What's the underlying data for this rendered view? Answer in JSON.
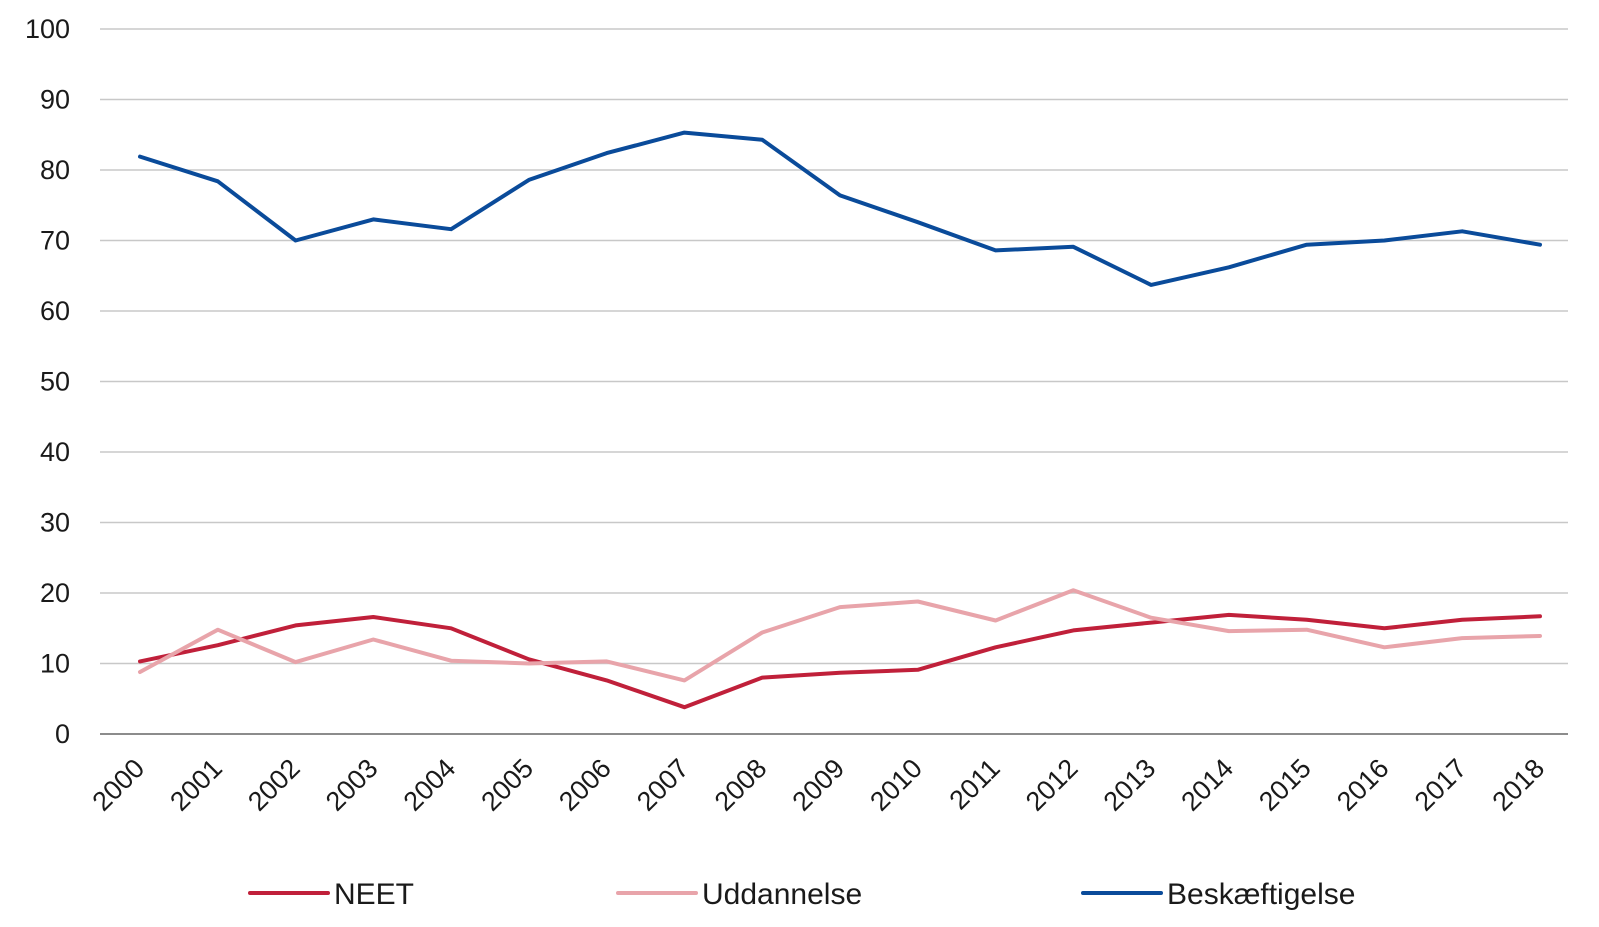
{
  "chart_data": {
    "type": "line",
    "title": "",
    "xlabel": "",
    "ylabel": "",
    "x": [
      "2000",
      "2001",
      "2002",
      "2003",
      "2004",
      "2005",
      "2006",
      "2007",
      "2008",
      "2009",
      "2010",
      "2011",
      "2012",
      "2013",
      "2014",
      "2015",
      "2016",
      "2017",
      "2018"
    ],
    "ylim": [
      0,
      100
    ],
    "yticks": [
      0,
      10,
      20,
      30,
      40,
      50,
      60,
      70,
      80,
      90,
      100
    ],
    "grid": true,
    "legend_position": "bottom",
    "series": [
      {
        "name": "NEET",
        "color": "#c0203a",
        "values": [
          10.3,
          12.6,
          15.4,
          16.6,
          15.0,
          10.6,
          7.6,
          3.8,
          8.0,
          8.7,
          9.1,
          12.3,
          14.7,
          15.8,
          16.9,
          16.2,
          15.0,
          16.2,
          16.7
        ]
      },
      {
        "name": "Uddannelse",
        "color": "#e8a4aa",
        "values": [
          8.8,
          14.8,
          10.2,
          13.4,
          10.4,
          10.0,
          10.3,
          7.6,
          14.4,
          18.0,
          18.8,
          16.1,
          20.4,
          16.5,
          14.6,
          14.8,
          12.3,
          13.6,
          13.9
        ]
      },
      {
        "name": "Beskæftigelse",
        "color": "#0a4b9a",
        "values": [
          81.9,
          78.4,
          70.0,
          73.0,
          71.6,
          78.6,
          82.4,
          85.3,
          84.3,
          76.4,
          72.6,
          68.6,
          69.1,
          63.7,
          66.2,
          69.4,
          70.0,
          71.3,
          69.4
        ]
      }
    ]
  }
}
